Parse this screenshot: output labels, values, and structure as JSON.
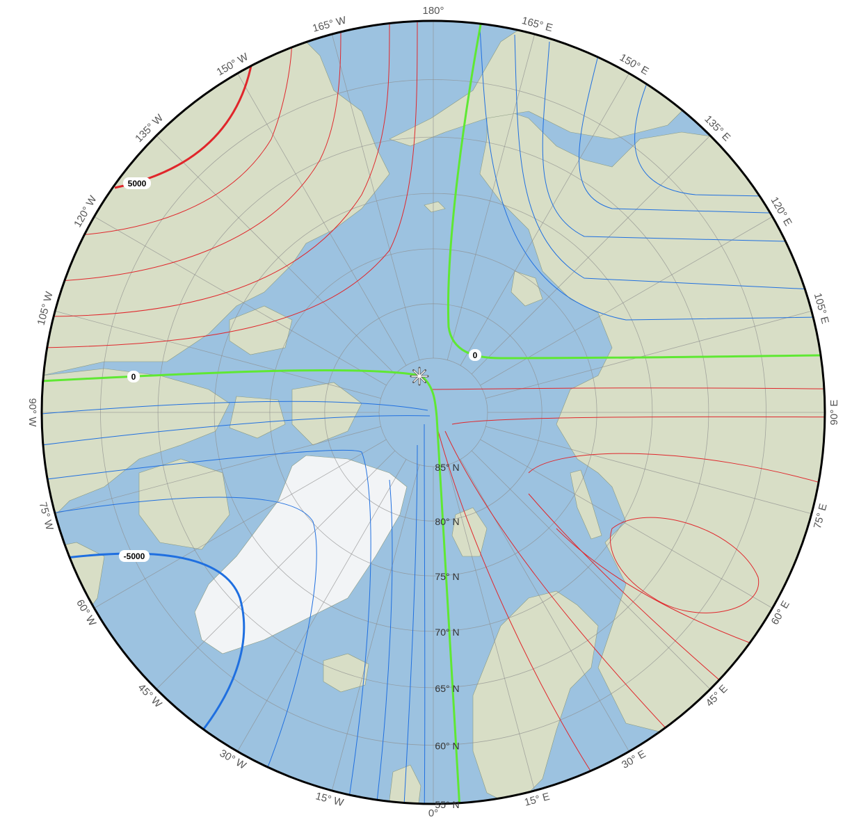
{
  "map": {
    "projection": "north-polar-stereographic",
    "center_lon_bottom": "0°",
    "lat_range": [
      55,
      90
    ],
    "pole_marker_icon": "asterisk-star-icon"
  },
  "longitude_labels": [
    {
      "deg": 0,
      "text": "0°"
    },
    {
      "deg": 15,
      "text": "15° E"
    },
    {
      "deg": 30,
      "text": "30° E"
    },
    {
      "deg": 45,
      "text": "45° E"
    },
    {
      "deg": 60,
      "text": "60° E"
    },
    {
      "deg": 75,
      "text": "75° E"
    },
    {
      "deg": 90,
      "text": "90° E"
    },
    {
      "deg": 105,
      "text": "105° E"
    },
    {
      "deg": 120,
      "text": "120° E"
    },
    {
      "deg": 135,
      "text": "135° E"
    },
    {
      "deg": 150,
      "text": "150° E"
    },
    {
      "deg": 165,
      "text": "165° E"
    },
    {
      "deg": 180,
      "text": "180°"
    },
    {
      "deg": -165,
      "text": "165° W"
    },
    {
      "deg": -150,
      "text": "150° W"
    },
    {
      "deg": -135,
      "text": "135° W"
    },
    {
      "deg": -120,
      "text": "120° W"
    },
    {
      "deg": -105,
      "text": "105° W"
    },
    {
      "deg": -90,
      "text": "90° W"
    },
    {
      "deg": -75,
      "text": "75° W"
    },
    {
      "deg": -60,
      "text": "60° W"
    },
    {
      "deg": -45,
      "text": "45° W"
    },
    {
      "deg": -30,
      "text": "30° W"
    },
    {
      "deg": -15,
      "text": "15° W"
    }
  ],
  "latitude_labels": [
    {
      "deg": 85,
      "text": "85° N"
    },
    {
      "deg": 80,
      "text": "80° N"
    },
    {
      "deg": 75,
      "text": "75° N"
    },
    {
      "deg": 70,
      "text": "70° N"
    },
    {
      "deg": 65,
      "text": "65° N"
    },
    {
      "deg": 60,
      "text": "60° N"
    },
    {
      "deg": 55,
      "text": "55° N"
    }
  ],
  "contour_labels": [
    {
      "text": "5000",
      "value": 5000
    },
    {
      "text": "0",
      "value": 0
    },
    {
      "text": "0",
      "value": 0
    },
    {
      "text": "-5000",
      "value": -5000
    }
  ],
  "colors": {
    "ocean": "#9cc2e0",
    "land": "#d9dfc8",
    "ice": "#f4f6f8",
    "positive_contour": "#e0262b",
    "negative_contour": "#1f6fe0",
    "zero_contour": "#5fe833",
    "graticule": "#8c8c8c",
    "border": "#000000"
  }
}
